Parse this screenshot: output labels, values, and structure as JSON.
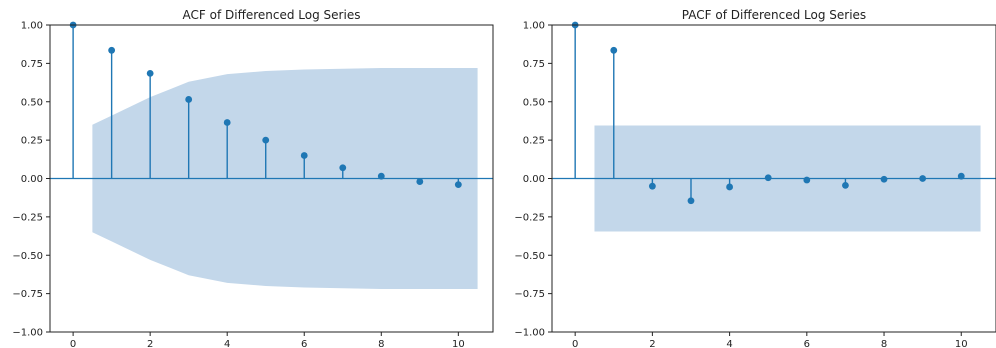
{
  "chart_data": [
    {
      "type": "stem",
      "title": "ACF of Differenced Log Series",
      "xlabel": "",
      "ylabel": "",
      "x": [
        0,
        1,
        2,
        3,
        4,
        5,
        6,
        7,
        8,
        9,
        10
      ],
      "values": [
        1.0,
        0.835,
        0.685,
        0.515,
        0.365,
        0.25,
        0.15,
        0.07,
        0.015,
        -0.02,
        -0.04
      ],
      "confidence_band": {
        "x": [
          0.5,
          1,
          1.5,
          2,
          2.5,
          3,
          4,
          5,
          6,
          7,
          8,
          9,
          10,
          10.5
        ],
        "upper": [
          0.35,
          0.41,
          0.47,
          0.53,
          0.58,
          0.63,
          0.68,
          0.7,
          0.71,
          0.715,
          0.72,
          0.72,
          0.72,
          0.72
        ]
      },
      "xlim": [
        -0.6,
        10.9
      ],
      "ylim": [
        -1.0,
        1.0
      ],
      "xticks": [
        "0",
        "2",
        "4",
        "6",
        "8",
        "10"
      ],
      "yticks": [
        "1.00",
        "0.75",
        "0.50",
        "0.25",
        "0.00",
        "−0.25",
        "−0.50",
        "−0.75",
        "−1.00"
      ],
      "grid": false,
      "colors": {
        "stem": "#1f77b4",
        "band": "#c3d7ea"
      }
    },
    {
      "type": "stem",
      "title": "PACF of Differenced Log Series",
      "xlabel": "",
      "ylabel": "",
      "x": [
        0,
        1,
        2,
        3,
        4,
        5,
        6,
        7,
        8,
        9,
        10
      ],
      "values": [
        1.0,
        0.835,
        -0.05,
        -0.145,
        -0.055,
        0.005,
        -0.01,
        -0.045,
        -0.005,
        0.0,
        0.015
      ],
      "confidence_band": {
        "x": [
          0.5,
          10.5
        ],
        "upper": [
          0.345,
          0.345
        ]
      },
      "xlim": [
        -0.6,
        10.9
      ],
      "ylim": [
        -1.0,
        1.0
      ],
      "xticks": [
        "0",
        "2",
        "4",
        "6",
        "8",
        "10"
      ],
      "yticks": [
        "1.00",
        "0.75",
        "0.50",
        "0.25",
        "0.00",
        "−0.25",
        "−0.50",
        "−0.75",
        "−1.00"
      ],
      "grid": false,
      "colors": {
        "stem": "#1f77b4",
        "band": "#c3d7ea"
      }
    }
  ]
}
